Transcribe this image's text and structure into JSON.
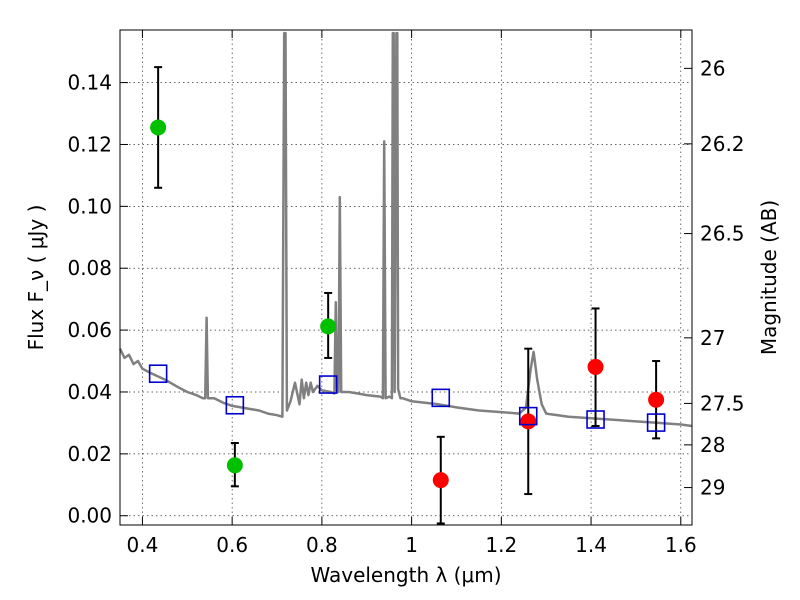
{
  "chart_data": {
    "type": "scatter",
    "xlabel": "Wavelength  λ (μm)",
    "ylabel": "Flux  F_ν  ( μJy )",
    "y2label": "Magnitude (AB)",
    "xlim": [
      0.35,
      1.625
    ],
    "ylim": [
      -0.003,
      0.157
    ],
    "grid": true,
    "x_ticks": [
      0.4,
      0.6,
      0.8,
      1.0,
      1.2,
      1.4,
      1.6
    ],
    "x_tick_labels": [
      "0.4",
      "0.6",
      "0.8",
      "1",
      "1.2",
      "1.4",
      "1.6"
    ],
    "y_ticks": [
      0.0,
      0.02,
      0.04,
      0.06,
      0.08,
      0.1,
      0.12,
      0.14
    ],
    "y_tick_labels": [
      "0.00",
      "0.02",
      "0.04",
      "0.06",
      "0.08",
      "0.10",
      "0.12",
      "0.14"
    ],
    "y2_ticks": [
      {
        "label": "26",
        "flux": 0.1446
      },
      {
        "label": "26.2",
        "flux": 0.1202
      },
      {
        "label": "26.5",
        "flux": 0.0912
      },
      {
        "label": "27",
        "flux": 0.0575
      },
      {
        "label": "27.5",
        "flux": 0.0363
      },
      {
        "label": "28",
        "flux": 0.0229
      },
      {
        "label": "29",
        "flux": 0.0091
      }
    ],
    "colors": {
      "green": "#00c000",
      "red": "#ff0000",
      "blue": "#0000cc",
      "model": "#808080",
      "errorbar": "#000000"
    },
    "series": [
      {
        "marker": "green-circle",
        "points": [
          {
            "x": 0.435,
            "y": 0.1255,
            "yerr_low": 0.106,
            "yerr_high": 0.145
          },
          {
            "x": 0.606,
            "y": 0.0163,
            "yerr_low": 0.0095,
            "yerr_high": 0.0235
          },
          {
            "x": 0.814,
            "y": 0.0612,
            "yerr_low": 0.051,
            "yerr_high": 0.072
          }
        ]
      },
      {
        "marker": "red-circle",
        "points": [
          {
            "x": 1.065,
            "y": 0.0115,
            "yerr_low": -0.0025,
            "yerr_high": 0.0255
          },
          {
            "x": 1.26,
            "y": 0.0305,
            "yerr_low": 0.007,
            "yerr_high": 0.054
          },
          {
            "x": 1.41,
            "y": 0.0481,
            "yerr_low": 0.029,
            "yerr_high": 0.067
          },
          {
            "x": 1.545,
            "y": 0.0375,
            "yerr_low": 0.025,
            "yerr_high": 0.05
          }
        ]
      },
      {
        "marker": "blue-open-square",
        "points": [
          {
            "x": 0.435,
            "y": 0.0459
          },
          {
            "x": 0.606,
            "y": 0.0357
          },
          {
            "x": 0.814,
            "y": 0.0424
          },
          {
            "x": 1.065,
            "y": 0.0381
          },
          {
            "x": 1.26,
            "y": 0.0322
          },
          {
            "x": 1.41,
            "y": 0.0311
          },
          {
            "x": 1.545,
            "y": 0.0301
          }
        ]
      },
      {
        "marker": "grey-line",
        "points": [
          [
            0.35,
            0.054
          ],
          [
            0.36,
            0.051
          ],
          [
            0.37,
            0.052
          ],
          [
            0.38,
            0.049
          ],
          [
            0.39,
            0.05
          ],
          [
            0.4,
            0.0475
          ],
          [
            0.42,
            0.046
          ],
          [
            0.45,
            0.044
          ],
          [
            0.48,
            0.0415
          ],
          [
            0.5,
            0.04
          ],
          [
            0.52,
            0.039
          ],
          [
            0.535,
            0.038
          ],
          [
            0.54,
            0.038
          ],
          [
            0.543,
            0.064
          ],
          [
            0.546,
            0.038
          ],
          [
            0.56,
            0.038
          ],
          [
            0.58,
            0.0365
          ],
          [
            0.6,
            0.0355
          ],
          [
            0.62,
            0.035
          ],
          [
            0.64,
            0.0345
          ],
          [
            0.66,
            0.034
          ],
          [
            0.68,
            0.033
          ],
          [
            0.7,
            0.0325
          ],
          [
            0.712,
            0.032
          ],
          [
            0.716,
            0.156
          ],
          [
            0.719,
            0.156
          ],
          [
            0.722,
            0.034
          ],
          [
            0.73,
            0.037
          ],
          [
            0.74,
            0.043
          ],
          [
            0.75,
            0.036
          ],
          [
            0.755,
            0.044
          ],
          [
            0.76,
            0.038
          ],
          [
            0.765,
            0.043
          ],
          [
            0.77,
            0.039
          ],
          [
            0.775,
            0.043
          ],
          [
            0.78,
            0.04
          ],
          [
            0.79,
            0.042
          ],
          [
            0.8,
            0.0405
          ],
          [
            0.82,
            0.04
          ],
          [
            0.828,
            0.0395
          ],
          [
            0.831,
            0.069
          ],
          [
            0.834,
            0.04
          ],
          [
            0.837,
            0.04
          ],
          [
            0.84,
            0.103
          ],
          [
            0.843,
            0.04
          ],
          [
            0.86,
            0.04
          ],
          [
            0.88,
            0.0395
          ],
          [
            0.9,
            0.039
          ],
          [
            0.93,
            0.0385
          ],
          [
            0.936,
            0.038
          ],
          [
            0.939,
            0.121
          ],
          [
            0.942,
            0.038
          ],
          [
            0.95,
            0.0385
          ],
          [
            0.956,
            0.038
          ],
          [
            0.958,
            0.156
          ],
          [
            0.96,
            0.156
          ],
          [
            0.962,
            0.04
          ],
          [
            0.966,
            0.156
          ],
          [
            0.968,
            0.156
          ],
          [
            0.97,
            0.041
          ],
          [
            0.975,
            0.038
          ],
          [
            0.98,
            0.038
          ],
          [
            1.0,
            0.037
          ],
          [
            1.03,
            0.0365
          ],
          [
            1.06,
            0.036
          ],
          [
            1.1,
            0.035
          ],
          [
            1.15,
            0.034
          ],
          [
            1.2,
            0.0335
          ],
          [
            1.24,
            0.033
          ],
          [
            1.255,
            0.035
          ],
          [
            1.265,
            0.047
          ],
          [
            1.272,
            0.053
          ],
          [
            1.28,
            0.044
          ],
          [
            1.29,
            0.036
          ],
          [
            1.3,
            0.033
          ],
          [
            1.35,
            0.032
          ],
          [
            1.4,
            0.0315
          ],
          [
            1.45,
            0.031
          ],
          [
            1.5,
            0.0305
          ],
          [
            1.55,
            0.03
          ],
          [
            1.6,
            0.0295
          ],
          [
            1.625,
            0.029
          ]
        ]
      }
    ]
  }
}
